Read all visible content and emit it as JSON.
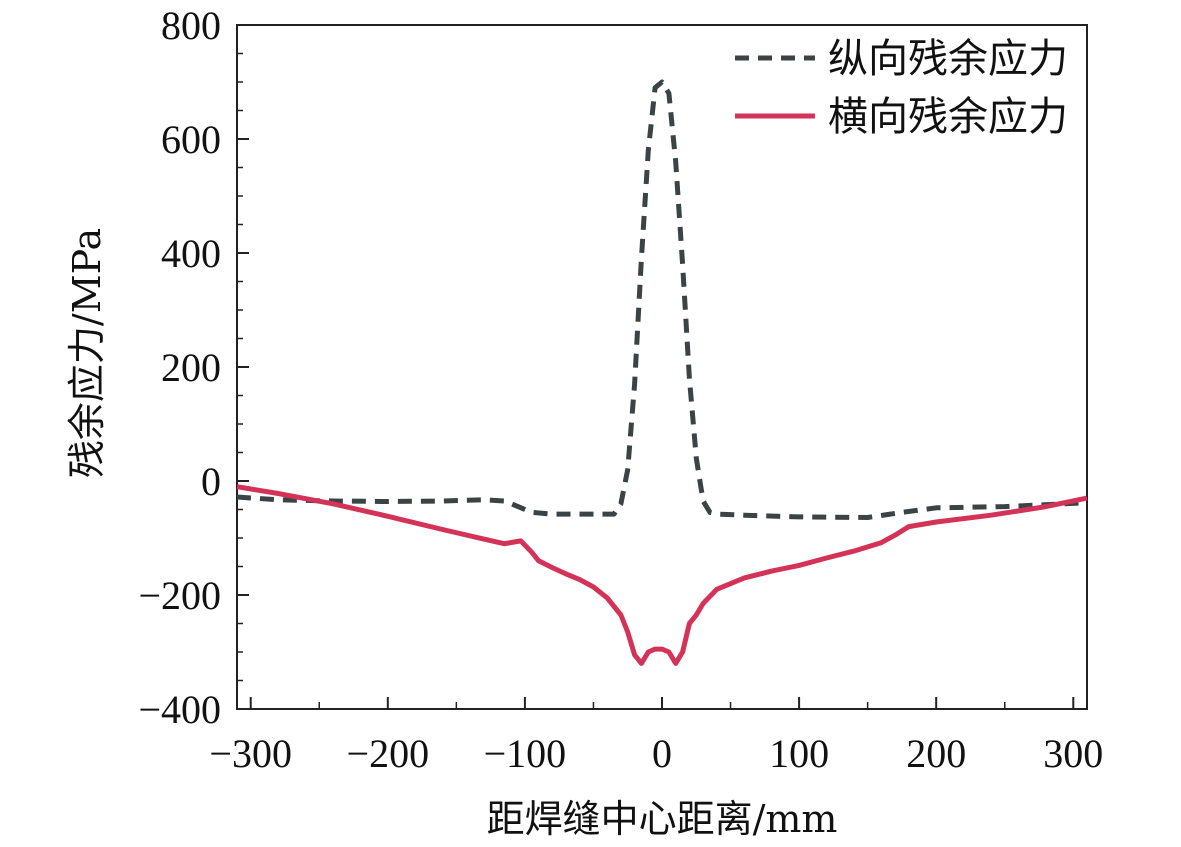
{
  "chart_data": {
    "type": "line",
    "title": "",
    "xlabel": "距焊缝中心距离/mm",
    "ylabel": "残余应力/MPa",
    "xlim": [
      -310,
      310
    ],
    "ylim": [
      -400,
      800
    ],
    "xticks": [
      -300,
      -200,
      -100,
      0,
      100,
      200,
      300
    ],
    "yticks": [
      -400,
      -200,
      0,
      200,
      400,
      600,
      800
    ],
    "xtick_labels": [
      "−300",
      "−200",
      "−100",
      "0",
      "100",
      "200",
      "300"
    ],
    "ytick_labels": [
      "−400",
      "−200",
      "0",
      "200",
      "400",
      "600",
      "800"
    ],
    "grid": false,
    "legend_position": "top-right",
    "series": [
      {
        "name": "纵向残余应力",
        "style": "dashed",
        "color": "#3a4446",
        "x": [
          -310,
          -280,
          -240,
          -200,
          -160,
          -130,
          -115,
          -105,
          -95,
          -80,
          -60,
          -45,
          -35,
          -30,
          -25,
          -20,
          -15,
          -10,
          -5,
          0,
          5,
          10,
          15,
          20,
          25,
          30,
          35,
          40,
          60,
          100,
          150,
          175,
          200,
          250,
          310
        ],
        "y": [
          -28,
          -33,
          -35,
          -36,
          -35,
          -33,
          -35,
          -45,
          -55,
          -58,
          -58,
          -58,
          -58,
          -40,
          20,
          170,
          390,
          580,
          690,
          700,
          680,
          560,
          380,
          180,
          40,
          -35,
          -55,
          -58,
          -60,
          -63,
          -64,
          -55,
          -47,
          -45,
          -38
        ]
      },
      {
        "name": "横向残余应力",
        "style": "solid",
        "color": "#d43358",
        "x": [
          -310,
          -280,
          -240,
          -200,
          -160,
          -130,
          -115,
          -103,
          -95,
          -90,
          -80,
          -70,
          -60,
          -50,
          -40,
          -30,
          -25,
          -20,
          -15,
          -10,
          -5,
          0,
          5,
          10,
          15,
          20,
          25,
          30,
          40,
          60,
          80,
          100,
          120,
          140,
          160,
          170,
          180,
          200,
          240,
          280,
          310
        ],
        "y": [
          -10,
          -22,
          -40,
          -62,
          -85,
          -102,
          -110,
          -105,
          -125,
          -140,
          -152,
          -163,
          -173,
          -186,
          -205,
          -235,
          -265,
          -305,
          -320,
          -300,
          -295,
          -295,
          -300,
          -320,
          -300,
          -250,
          -235,
          -215,
          -190,
          -170,
          -158,
          -148,
          -135,
          -123,
          -108,
          -95,
          -80,
          -72,
          -60,
          -45,
          -30
        ]
      }
    ]
  }
}
